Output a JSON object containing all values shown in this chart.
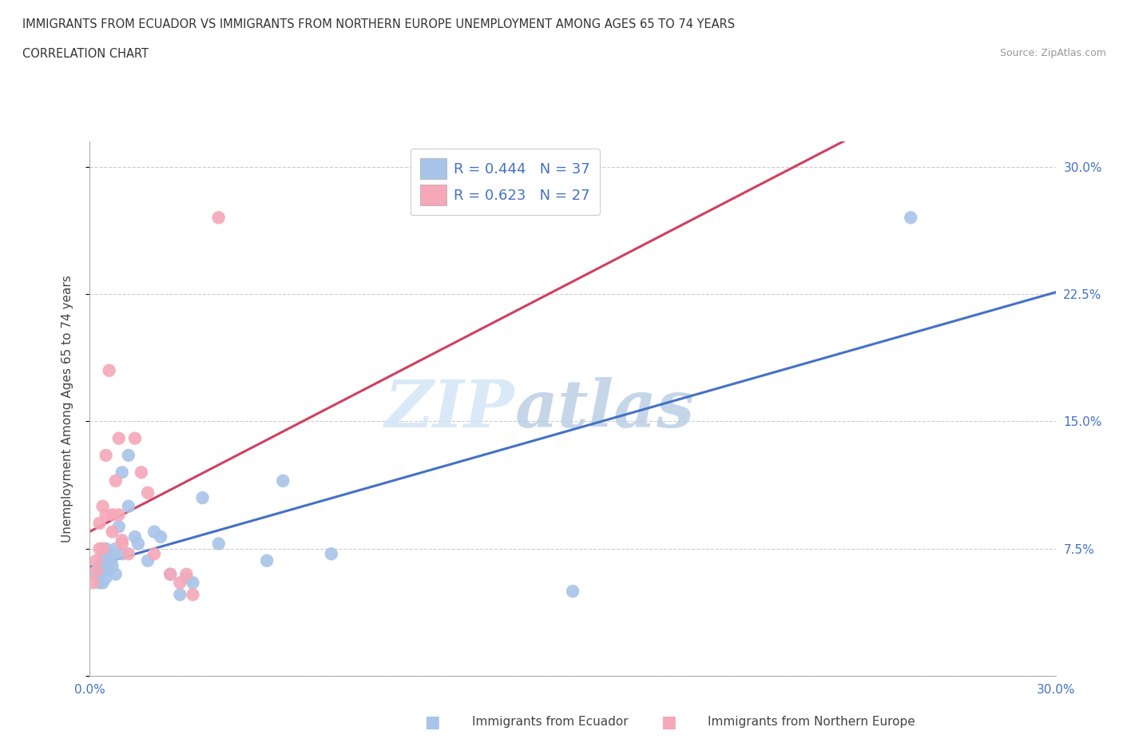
{
  "title_line1": "IMMIGRANTS FROM ECUADOR VS IMMIGRANTS FROM NORTHERN EUROPE UNEMPLOYMENT AMONG AGES 65 TO 74 YEARS",
  "title_line2": "CORRELATION CHART",
  "source": "Source: ZipAtlas.com",
  "ylabel": "Unemployment Among Ages 65 to 74 years",
  "xlabel_blue": "Immigrants from Ecuador",
  "xlabel_pink": "Immigrants from Northern Europe",
  "xmin": 0.0,
  "xmax": 0.3,
  "ymin": 0.0,
  "ymax": 0.315,
  "yticks": [
    0.0,
    0.075,
    0.15,
    0.225,
    0.3
  ],
  "ytick_labels_right": [
    "",
    "7.5%",
    "15.0%",
    "22.5%",
    "30.0%"
  ],
  "xticks": [
    0.0,
    0.075,
    0.15,
    0.225,
    0.3
  ],
  "xtick_labels": [
    "0.0%",
    "",
    "",
    "",
    "30.0%"
  ],
  "R_blue": 0.444,
  "N_blue": 37,
  "R_pink": 0.623,
  "N_pink": 27,
  "color_blue": "#A8C4E8",
  "color_pink": "#F4A8B8",
  "line_color_blue": "#4472C4",
  "line_color_pink": "#D04060",
  "legend_text_color": "#4472C4",
  "watermark_zip": "ZIP",
  "watermark_atlas": "atlas",
  "blue_points": [
    [
      0.002,
      0.06
    ],
    [
      0.003,
      0.055
    ],
    [
      0.003,
      0.065
    ],
    [
      0.004,
      0.068
    ],
    [
      0.004,
      0.055
    ],
    [
      0.004,
      0.062
    ],
    [
      0.005,
      0.07
    ],
    [
      0.005,
      0.058
    ],
    [
      0.005,
      0.075
    ],
    [
      0.006,
      0.063
    ],
    [
      0.006,
      0.068
    ],
    [
      0.006,
      0.072
    ],
    [
      0.007,
      0.065
    ],
    [
      0.007,
      0.07
    ],
    [
      0.008,
      0.06
    ],
    [
      0.008,
      0.075
    ],
    [
      0.009,
      0.088
    ],
    [
      0.01,
      0.072
    ],
    [
      0.01,
      0.12
    ],
    [
      0.012,
      0.1
    ],
    [
      0.012,
      0.13
    ],
    [
      0.014,
      0.082
    ],
    [
      0.015,
      0.078
    ],
    [
      0.018,
      0.068
    ],
    [
      0.02,
      0.085
    ],
    [
      0.022,
      0.082
    ],
    [
      0.025,
      0.06
    ],
    [
      0.028,
      0.048
    ],
    [
      0.03,
      0.058
    ],
    [
      0.032,
      0.055
    ],
    [
      0.035,
      0.105
    ],
    [
      0.04,
      0.078
    ],
    [
      0.055,
      0.068
    ],
    [
      0.06,
      0.115
    ],
    [
      0.075,
      0.072
    ],
    [
      0.15,
      0.05
    ],
    [
      0.255,
      0.27
    ]
  ],
  "pink_points": [
    [
      0.001,
      0.055
    ],
    [
      0.002,
      0.062
    ],
    [
      0.002,
      0.068
    ],
    [
      0.003,
      0.075
    ],
    [
      0.003,
      0.09
    ],
    [
      0.004,
      0.075
    ],
    [
      0.004,
      0.1
    ],
    [
      0.005,
      0.095
    ],
    [
      0.005,
      0.13
    ],
    [
      0.006,
      0.18
    ],
    [
      0.007,
      0.085
    ],
    [
      0.007,
      0.095
    ],
    [
      0.008,
      0.115
    ],
    [
      0.009,
      0.095
    ],
    [
      0.009,
      0.14
    ],
    [
      0.01,
      0.078
    ],
    [
      0.01,
      0.08
    ],
    [
      0.012,
      0.072
    ],
    [
      0.014,
      0.14
    ],
    [
      0.016,
      0.12
    ],
    [
      0.018,
      0.108
    ],
    [
      0.02,
      0.072
    ],
    [
      0.025,
      0.06
    ],
    [
      0.028,
      0.055
    ],
    [
      0.03,
      0.06
    ],
    [
      0.032,
      0.048
    ],
    [
      0.04,
      0.27
    ]
  ]
}
